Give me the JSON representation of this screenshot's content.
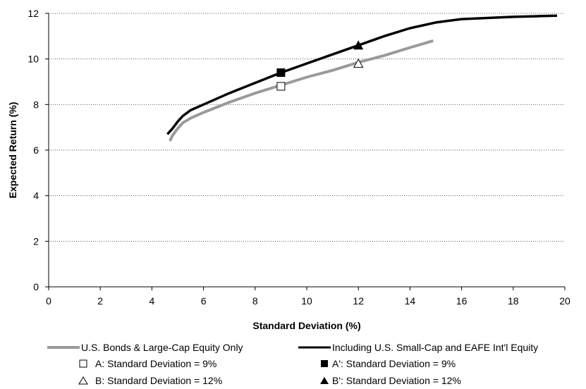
{
  "chart_data": {
    "type": "line",
    "title": "",
    "xlabel": "Standard Deviation (%)",
    "ylabel": "Expected Return (%)",
    "xlim": [
      0,
      20
    ],
    "ylim": [
      0,
      12
    ],
    "xticks": [
      "0",
      "2",
      "4",
      "6",
      "8",
      "10",
      "12",
      "14",
      "16",
      "18",
      "20"
    ],
    "yticks": [
      "0",
      "2",
      "4",
      "6",
      "8",
      "10",
      "12"
    ],
    "grid": "horizontal dotted",
    "legend_position": "bottom",
    "series": [
      {
        "name": "U.S. Bonds & Large-Cap Equity Only",
        "color": "#9a9a9a",
        "x": [
          4.7,
          4.8,
          5.0,
          5.2,
          5.5,
          6.0,
          7.0,
          8.0,
          9.0,
          10.0,
          11.0,
          12.0,
          13.0,
          14.0,
          14.9
        ],
        "y": [
          6.4,
          6.65,
          6.95,
          7.2,
          7.4,
          7.65,
          8.1,
          8.5,
          8.85,
          9.2,
          9.5,
          9.85,
          10.15,
          10.5,
          10.8
        ]
      },
      {
        "name": "Including U.S. Small-Cap and EAFE Int'l Equity",
        "color": "#000000",
        "x": [
          4.6,
          4.8,
          5.0,
          5.2,
          5.5,
          6.0,
          7.0,
          8.0,
          9.0,
          10.0,
          11.0,
          12.0,
          13.0,
          14.0,
          15.0,
          16.0,
          17.0,
          18.0,
          19.0,
          19.7
        ],
        "y": [
          6.7,
          6.95,
          7.25,
          7.5,
          7.75,
          8.0,
          8.5,
          8.95,
          9.4,
          9.8,
          10.2,
          10.6,
          11.0,
          11.35,
          11.6,
          11.75,
          11.8,
          11.85,
          11.88,
          11.9
        ]
      }
    ],
    "points": [
      {
        "label": "A: Standard Deviation = 9%",
        "marker": "open-square",
        "x": 9,
        "y": 8.8
      },
      {
        "label": "A': Standard Deviation = 9%",
        "marker": "filled-square",
        "x": 9,
        "y": 9.4
      },
      {
        "label": "B: Standard Deviation = 12%",
        "marker": "open-triangle",
        "x": 12,
        "y": 9.8
      },
      {
        "label": "B': Standard Deviation = 12%",
        "marker": "filled-triangle",
        "x": 12,
        "y": 10.6
      }
    ]
  },
  "legend": {
    "line1": "U.S. Bonds & Large-Cap Equity Only",
    "line2": "Including U.S. Small-Cap and EAFE Int'l Equity",
    "a": "A: Standard Deviation = 9%",
    "b": "B: Standard Deviation = 12%",
    "a_prime": "A': Standard Deviation = 9%",
    "b_prime": "B': Standard Deviation = 12%"
  }
}
